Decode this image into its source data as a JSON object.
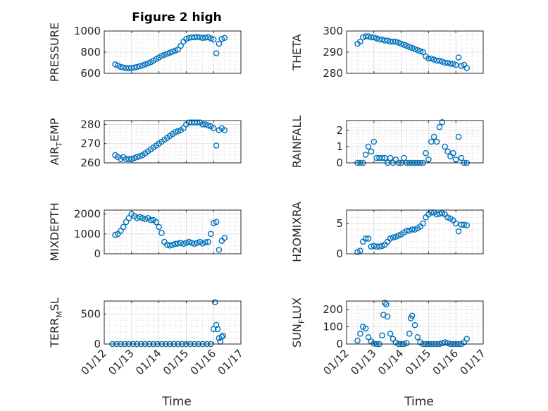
{
  "figure_title": "Figure 2 high",
  "x_axis_label": "Time",
  "x_tick_labels": [
    "01/12",
    "01/13",
    "01/14",
    "01/15",
    "01/16",
    "01/17"
  ],
  "marker_color": "#0072BD",
  "chart_data": [
    {
      "type": "scatter",
      "title": "Figure 2 high",
      "ylabel": "PRESSURE",
      "xlabel": "",
      "xlim": [
        12,
        17
      ],
      "ylim": [
        600,
        1000
      ],
      "yticks": [
        600,
        800,
        1000
      ],
      "grid": true,
      "marker": "open-circle",
      "x": [
        12.4,
        12.5,
        12.6,
        12.7,
        12.8,
        12.9,
        13.0,
        13.1,
        13.2,
        13.3,
        13.4,
        13.5,
        13.6,
        13.7,
        13.8,
        13.9,
        14.0,
        14.1,
        14.2,
        14.3,
        14.4,
        14.5,
        14.6,
        14.7,
        14.8,
        14.9,
        15.0,
        15.1,
        15.2,
        15.3,
        15.4,
        15.5,
        15.6,
        15.7,
        15.8,
        15.9,
        16.0,
        16.1,
        16.2,
        16.3,
        16.4
      ],
      "y": [
        685,
        675,
        660,
        655,
        650,
        648,
        650,
        655,
        660,
        668,
        675,
        685,
        695,
        705,
        720,
        735,
        750,
        765,
        775,
        785,
        795,
        805,
        815,
        825,
        860,
        900,
        925,
        935,
        940,
        940,
        945,
        940,
        935,
        938,
        942,
        930,
        920,
        790,
        880,
        925,
        935
      ]
    },
    {
      "type": "scatter",
      "ylabel": "THETA",
      "xlabel": "",
      "xlim": [
        12,
        17
      ],
      "ylim": [
        280,
        300
      ],
      "yticks": [
        280,
        290,
        300
      ],
      "grid": true,
      "marker": "open-circle",
      "x": [
        12.4,
        12.5,
        12.6,
        12.7,
        12.8,
        12.9,
        13.0,
        13.1,
        13.2,
        13.3,
        13.4,
        13.5,
        13.6,
        13.7,
        13.8,
        13.9,
        14.0,
        14.1,
        14.2,
        14.3,
        14.4,
        14.5,
        14.6,
        14.7,
        14.8,
        14.9,
        15.0,
        15.1,
        15.2,
        15.3,
        15.4,
        15.5,
        15.6,
        15.7,
        15.8,
        15.9,
        16.0,
        16.1,
        16.2,
        16.3,
        16.4
      ],
      "y": [
        294,
        295,
        297,
        297.5,
        297.5,
        297,
        297,
        296.5,
        296,
        296,
        295.5,
        295.5,
        295,
        295,
        295,
        294.5,
        294,
        293.5,
        293,
        292.5,
        292,
        291.5,
        291,
        290.5,
        290,
        288,
        287,
        287,
        286.5,
        286,
        286,
        285.5,
        285,
        285,
        284.5,
        284.5,
        284,
        287.5,
        283.5,
        284,
        282.5
      ]
    },
    {
      "type": "scatter",
      "ylabel": "AIR_TEMP",
      "xlabel": "",
      "xlim": [
        12,
        17
      ],
      "ylim": [
        260,
        282
      ],
      "yticks": [
        260,
        270,
        280
      ],
      "grid": true,
      "marker": "open-circle",
      "x": [
        12.4,
        12.5,
        12.6,
        12.7,
        12.8,
        12.9,
        13.0,
        13.1,
        13.2,
        13.3,
        13.4,
        13.5,
        13.6,
        13.7,
        13.8,
        13.9,
        14.0,
        14.1,
        14.2,
        14.3,
        14.4,
        14.5,
        14.6,
        14.7,
        14.8,
        14.9,
        15.0,
        15.1,
        15.2,
        15.3,
        15.4,
        15.5,
        15.6,
        15.7,
        15.8,
        15.9,
        16.0,
        16.1,
        16.2,
        16.3,
        16.4
      ],
      "y": [
        264,
        263,
        262,
        263,
        262,
        262,
        262,
        262.5,
        263,
        263.5,
        264,
        265,
        266,
        267,
        268,
        269,
        270,
        271,
        272,
        273,
        274,
        275,
        276,
        276.5,
        277,
        278,
        280,
        281,
        281,
        281,
        281,
        281,
        280,
        280,
        279.5,
        279,
        278,
        269,
        277,
        278,
        277
      ]
    },
    {
      "type": "scatter",
      "ylabel": "RAINFALL",
      "xlabel": "",
      "xlim": [
        12,
        17
      ],
      "ylim": [
        0,
        2.6
      ],
      "yticks": [
        0,
        1,
        2
      ],
      "grid": true,
      "marker": "open-circle",
      "x": [
        12.4,
        12.5,
        12.6,
        12.7,
        12.8,
        12.9,
        13.0,
        13.1,
        13.2,
        13.3,
        13.4,
        13.5,
        13.6,
        13.7,
        13.8,
        13.9,
        14.0,
        14.1,
        14.2,
        14.3,
        14.4,
        14.5,
        14.6,
        14.7,
        14.8,
        14.9,
        15.0,
        15.1,
        15.2,
        15.3,
        15.4,
        15.5,
        15.6,
        15.7,
        15.8,
        15.9,
        16.0,
        16.1,
        16.2,
        16.3,
        16.4
      ],
      "y": [
        0,
        0,
        0,
        0.5,
        1.0,
        0.7,
        1.3,
        0.3,
        0.3,
        0.3,
        0.3,
        0,
        0.3,
        0,
        0.2,
        0,
        0,
        0.3,
        0,
        0,
        0,
        0,
        0,
        0,
        0,
        0.6,
        0.2,
        1.3,
        1.6,
        1.3,
        2.2,
        2.5,
        1.0,
        0.7,
        0.4,
        0.6,
        0.2,
        1.6,
        0.3,
        0,
        0
      ]
    },
    {
      "type": "scatter",
      "ylabel": "MIXDEPTH",
      "xlabel": "",
      "xlim": [
        12,
        17
      ],
      "ylim": [
        0,
        2200
      ],
      "yticks": [
        0,
        1000,
        2000
      ],
      "grid": true,
      "marker": "open-circle",
      "x": [
        12.4,
        12.5,
        12.6,
        12.7,
        12.8,
        12.9,
        13.0,
        13.1,
        13.2,
        13.3,
        13.4,
        13.5,
        13.6,
        13.7,
        13.8,
        13.9,
        14.0,
        14.1,
        14.2,
        14.3,
        14.4,
        14.5,
        14.6,
        14.7,
        14.8,
        14.9,
        15.0,
        15.1,
        15.2,
        15.3,
        15.4,
        15.5,
        15.6,
        15.7,
        15.8,
        15.9,
        16.0,
        16.1,
        16.2,
        16.3,
        16.4
      ],
      "y": [
        950,
        1000,
        1150,
        1350,
        1600,
        1800,
        2000,
        1900,
        1800,
        1850,
        1800,
        1750,
        1800,
        1700,
        1700,
        1600,
        1350,
        1050,
        600,
        450,
        420,
        450,
        500,
        520,
        550,
        500,
        550,
        600,
        550,
        500,
        550,
        600,
        520,
        580,
        600,
        1000,
        1550,
        1600,
        200,
        650,
        800
      ]
    },
    {
      "type": "scatter",
      "ylabel": "H2OMIXRA",
      "xlabel": "",
      "xlim": [
        12,
        17
      ],
      "ylim": [
        0,
        7.2
      ],
      "yticks": [
        0,
        5
      ],
      "grid": true,
      "marker": "open-circle",
      "x": [
        12.4,
        12.5,
        12.6,
        12.7,
        12.8,
        12.9,
        13.0,
        13.1,
        13.2,
        13.3,
        13.4,
        13.5,
        13.6,
        13.7,
        13.8,
        13.9,
        14.0,
        14.1,
        14.2,
        14.3,
        14.4,
        14.5,
        14.6,
        14.7,
        14.8,
        14.9,
        15.0,
        15.1,
        15.2,
        15.3,
        15.4,
        15.5,
        15.6,
        15.7,
        15.8,
        15.9,
        16.0,
        16.1,
        16.2,
        16.3,
        16.4
      ],
      "y": [
        0.3,
        0.5,
        2.0,
        2.5,
        2.5,
        1.2,
        1.3,
        1.2,
        1.2,
        1.3,
        1.5,
        2.0,
        2.5,
        2.7,
        2.8,
        3.0,
        3.2,
        3.5,
        3.8,
        3.8,
        4.0,
        4.0,
        4.2,
        4.5,
        5.0,
        6.0,
        6.5,
        6.8,
        6.8,
        6.5,
        6.6,
        6.7,
        6.5,
        6.0,
        5.8,
        5.5,
        5.0,
        3.7,
        4.8,
        4.8,
        4.7
      ]
    },
    {
      "type": "scatter",
      "ylabel": "TERR_MSL",
      "xlabel": "Time",
      "xlim": [
        12,
        17
      ],
      "ylim": [
        0,
        720
      ],
      "yticks": [
        0,
        500
      ],
      "grid": true,
      "marker": "open-circle",
      "x": [
        12.3,
        12.45,
        12.6,
        12.75,
        12.9,
        13.05,
        13.2,
        13.35,
        13.5,
        13.65,
        13.8,
        13.95,
        14.1,
        14.25,
        14.4,
        14.55,
        14.7,
        14.85,
        15.0,
        15.15,
        15.3,
        15.45,
        15.6,
        15.75,
        15.9,
        16.0,
        16.05,
        16.1,
        16.15,
        16.2,
        16.25,
        16.3,
        16.35
      ],
      "y": [
        0,
        0,
        0,
        0,
        0,
        0,
        0,
        0,
        0,
        0,
        0,
        0,
        0,
        0,
        0,
        0,
        0,
        0,
        0,
        0,
        0,
        0,
        0,
        0,
        0,
        250,
        700,
        320,
        250,
        100,
        40,
        120,
        140
      ]
    },
    {
      "type": "scatter",
      "ylabel": "SUN_FLUX",
      "xlabel": "Time",
      "xlim": [
        12,
        17
      ],
      "ylim": [
        0,
        250
      ],
      "yticks": [
        0,
        100,
        200
      ],
      "grid": true,
      "marker": "open-circle",
      "x": [
        12.4,
        12.5,
        12.6,
        12.7,
        12.8,
        12.9,
        13.0,
        13.1,
        13.2,
        13.3,
        13.35,
        13.4,
        13.45,
        13.5,
        13.6,
        13.7,
        13.8,
        13.9,
        14.0,
        14.1,
        14.2,
        14.3,
        14.35,
        14.4,
        14.5,
        14.6,
        14.7,
        14.8,
        14.9,
        15.0,
        15.1,
        15.2,
        15.3,
        15.4,
        15.5,
        15.6,
        15.7,
        15.8,
        15.9,
        16.0,
        16.1,
        16.2,
        16.3,
        16.4
      ],
      "y": [
        20,
        60,
        100,
        90,
        40,
        15,
        3,
        0,
        0,
        50,
        170,
        240,
        230,
        160,
        60,
        30,
        10,
        0,
        0,
        0,
        5,
        60,
        150,
        165,
        110,
        40,
        10,
        0,
        0,
        0,
        0,
        0,
        0,
        0,
        5,
        10,
        5,
        0,
        0,
        0,
        0,
        0,
        10,
        30
      ]
    }
  ]
}
